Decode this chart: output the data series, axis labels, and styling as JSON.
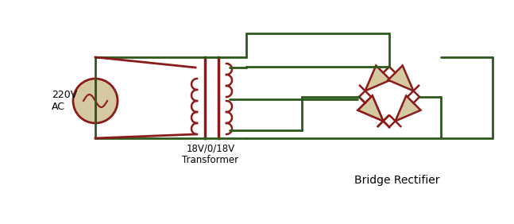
{
  "bg_color": "#ffffff",
  "wire_color": "#2d5a1b",
  "component_color": "#8b1a1a",
  "diode_fill": "#d4c9a0",
  "source_fill": "#d4c9a0",
  "label_220v": "220V\nAC",
  "label_transformer": "18V/0/18V\nTransformer",
  "label_bridge": "Bridge Rectifier",
  "figsize": [
    6.47,
    2.82
  ],
  "dpi": 100
}
